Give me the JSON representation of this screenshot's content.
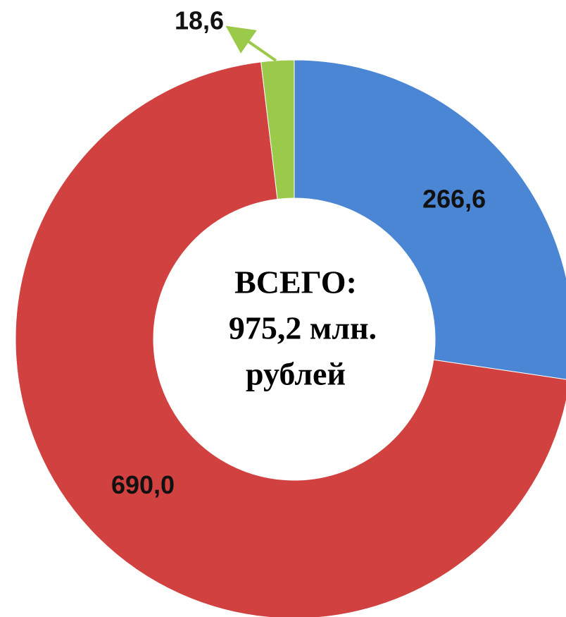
{
  "chart_data": {
    "type": "donut",
    "categories": [
      null,
      null,
      null
    ],
    "values": [
      266.6,
      690.0,
      18.6
    ],
    "value_labels": [
      "266,6",
      "690,0",
      "18,6"
    ],
    "colors": [
      "#4a86d4",
      "#d0413f",
      "#9bc94a"
    ],
    "center_text": [
      "ВСЕГО:",
      "975,2 млн.",
      "рублей"
    ]
  }
}
